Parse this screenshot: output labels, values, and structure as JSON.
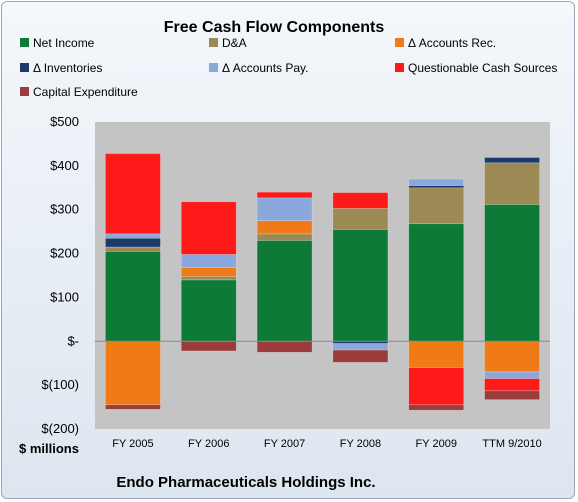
{
  "chart_data": {
    "type": "bar",
    "stacked": true,
    "title": "Free Cash Flow Components",
    "ylabel": "$ millions",
    "subtitle": "Endo Pharmaceuticals Holdings Inc.",
    "categories": [
      "FY 2005",
      "FY 2006",
      "FY 2007",
      "FY 2008",
      "FY 2009",
      "TTM 9/2010"
    ],
    "ylim": [
      -200,
      500
    ],
    "yticks": [
      500,
      400,
      300,
      200,
      100,
      0,
      -100,
      -200
    ],
    "ytick_labels": [
      "$500",
      "$400",
      "$300",
      "$200",
      "$100",
      "$-",
      "$(100)",
      "$(200)"
    ],
    "grid": false,
    "legend_position": "top",
    "series": [
      {
        "name": "Net Income",
        "color": "#0e7a37",
        "values": [
          205,
          140,
          230,
          255,
          268,
          312
        ]
      },
      {
        "name": "D&A",
        "color": "#9c8a55",
        "values": [
          10,
          8,
          15,
          48,
          82,
          95
        ]
      },
      {
        "name": "Δ Accounts Rec.",
        "color": "#f07a16",
        "values": [
          -145,
          20,
          30,
          0,
          -60,
          -70
        ]
      },
      {
        "name": "Δ Inventories",
        "color": "#1a3b6a",
        "values": [
          20,
          0,
          0,
          -5,
          5,
          12
        ]
      },
      {
        "name": "Δ Accounts Pay.",
        "color": "#8aa8dc",
        "values": [
          10,
          30,
          52,
          -15,
          15,
          -15
        ]
      },
      {
        "name": "Questionable Cash Sources",
        "color": "#ff1a1a",
        "values": [
          183,
          120,
          13,
          36,
          -85,
          -28
        ]
      },
      {
        "name": "Capital Expenditure",
        "color": "#9b3b3b",
        "values": [
          -10,
          -22,
          -25,
          -28,
          -12,
          -20
        ]
      }
    ]
  }
}
